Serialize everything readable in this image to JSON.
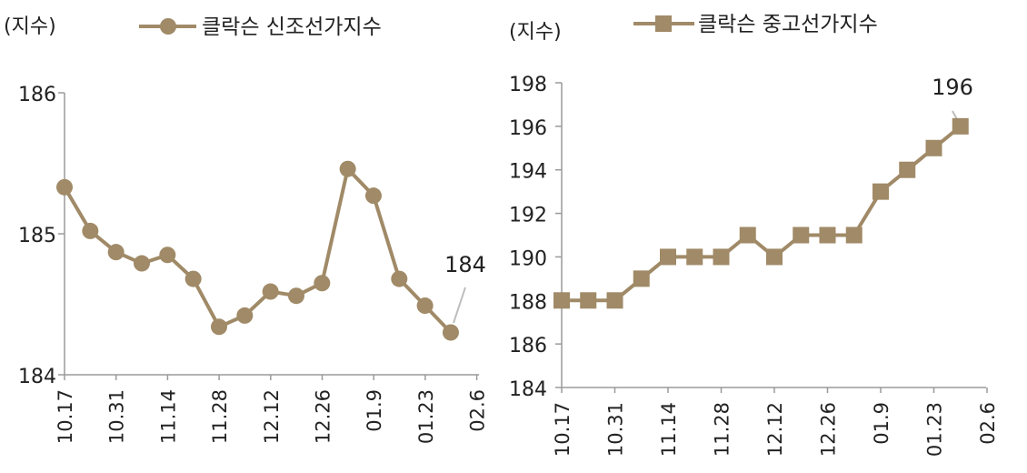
{
  "colors": {
    "series": "#a08a67",
    "axis": "#9a9a9a",
    "callout": "#bdbdbd",
    "text": "#222222"
  },
  "chart_data": [
    {
      "type": "line",
      "marker": "circle",
      "unit_label": "(지수)",
      "series": [
        {
          "name": "클락슨 신조선가지수",
          "values": [
            185.33,
            185.02,
            184.87,
            184.79,
            184.85,
            184.68,
            184.34,
            184.42,
            184.59,
            184.56,
            184.65,
            185.46,
            185.27,
            184.68,
            184.49,
            184.3
          ]
        }
      ],
      "x_ticks": [
        "10.17",
        "10.31",
        "11.14",
        "11.28",
        "12.12",
        "12.26",
        "01.9",
        "01.23",
        "02.6"
      ],
      "y_ticks": [
        "184",
        "185",
        "186"
      ],
      "ylim": [
        184,
        186
      ],
      "annotation": {
        "text": "184",
        "point_index": 15
      }
    },
    {
      "type": "line",
      "marker": "square",
      "unit_label": "(지수)",
      "series": [
        {
          "name": "클락슨 중고선가지수",
          "values": [
            188,
            188,
            188,
            189,
            190,
            190,
            190,
            191,
            190,
            191,
            191,
            191,
            193,
            194,
            195,
            196
          ]
        }
      ],
      "x_ticks": [
        "10.17",
        "10.31",
        "11.14",
        "11.28",
        "12.12",
        "12.26",
        "01.9",
        "01.23",
        "02.6"
      ],
      "y_ticks": [
        "184",
        "186",
        "188",
        "190",
        "192",
        "194",
        "196",
        "198"
      ],
      "ylim": [
        184,
        198
      ],
      "annotation": {
        "text": "196",
        "point_index": 15
      }
    }
  ]
}
